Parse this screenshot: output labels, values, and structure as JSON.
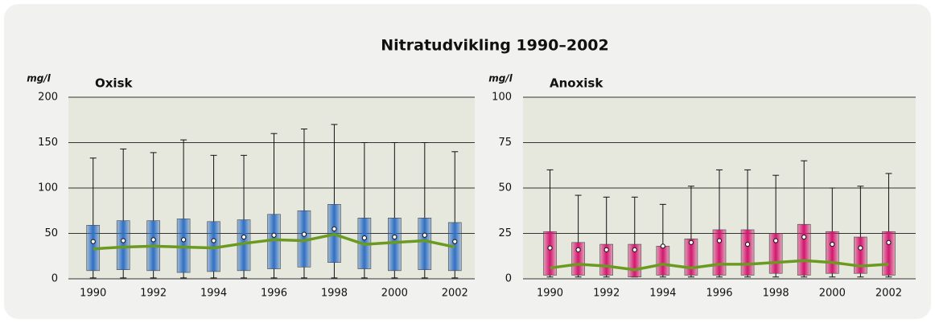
{
  "title": "Nitratudvikling 1990–2002",
  "chart_data": [
    {
      "type": "box",
      "title": "Oxisk",
      "ylabel": "mg/l",
      "categories": [
        "1990",
        null,
        "1992",
        null,
        "1994",
        null,
        "1996",
        null,
        "1998",
        null,
        "2000",
        null,
        "2002"
      ],
      "min": [
        1,
        1,
        1,
        1,
        1,
        1,
        1,
        1,
        1,
        1,
        1,
        1,
        1
      ],
      "q1": [
        9,
        10,
        9,
        7,
        8,
        9,
        11,
        13,
        18,
        11,
        9,
        10,
        9
      ],
      "median": [
        33,
        35,
        36,
        35,
        34,
        39,
        43,
        42,
        49,
        38,
        40,
        42,
        35
      ],
      "q3": [
        59,
        64,
        64,
        66,
        63,
        65,
        71,
        75,
        82,
        67,
        67,
        67,
        62
      ],
      "max": [
        133,
        143,
        139,
        153,
        136,
        136,
        160,
        165,
        170,
        150,
        150,
        150,
        140
      ],
      "mean": [
        41,
        42,
        43,
        43,
        42,
        46,
        48,
        49,
        55,
        45,
        46,
        48,
        41
      ],
      "color": "#2f6fc4",
      "line_color": "#6a9a1f",
      "ylim": [
        0,
        200
      ],
      "yticks": [
        0,
        50,
        100,
        150,
        200
      ],
      "grid": true
    },
    {
      "type": "box",
      "title": "Anoxisk",
      "ylabel": "mg/l",
      "categories": [
        "1990",
        null,
        "1992",
        null,
        "1994",
        null,
        "1996",
        null,
        "1998",
        null,
        "2000",
        null,
        "2002"
      ],
      "min": [
        1,
        1,
        1,
        1,
        1,
        1,
        1,
        1,
        1,
        1,
        1,
        1,
        1
      ],
      "q1": [
        2,
        2,
        2,
        1,
        2,
        2,
        2,
        2,
        3,
        2,
        3,
        3,
        2
      ],
      "median": [
        6,
        8,
        7,
        5,
        8,
        6,
        8,
        8,
        9,
        10,
        9,
        7,
        8
      ],
      "q3": [
        26,
        20,
        19,
        19,
        18,
        22,
        27,
        27,
        25,
        30,
        26,
        23,
        26
      ],
      "max": [
        60,
        46,
        45,
        45,
        41,
        51,
        60,
        60,
        57,
        65,
        50,
        51,
        58
      ],
      "mean": [
        17,
        16,
        16,
        16,
        18,
        20,
        21,
        19,
        21,
        23,
        19,
        17,
        20
      ],
      "color": "#d4166f",
      "line_color": "#6a9a1f",
      "ylim": [
        0,
        100
      ],
      "yticks": [
        0,
        25,
        50,
        75,
        100
      ],
      "grid": true
    }
  ]
}
